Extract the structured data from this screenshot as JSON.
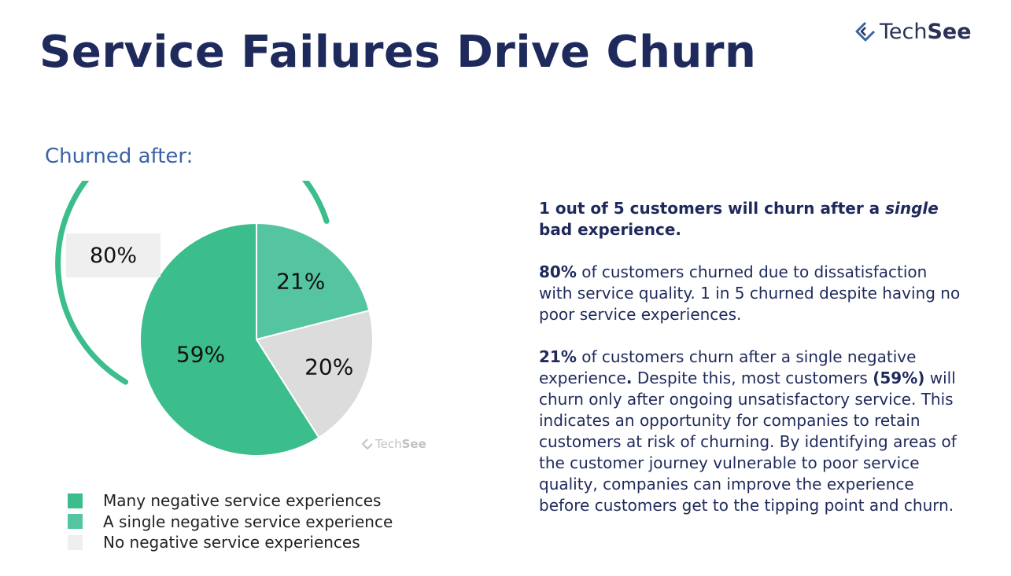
{
  "slide": {
    "title": "Service Failures Drive Churn",
    "subtitle": "Churned after:"
  },
  "logo": {
    "icon": "techsee-diamond-icon",
    "text_regular": "Tech",
    "text_bold": "See"
  },
  "callout": {
    "value": "80%"
  },
  "watermark": {
    "text_regular": "Tech",
    "text_bold": "See"
  },
  "colors": {
    "many": "#3bbd8c",
    "single": "#55c4a0",
    "none": "#dcdcdc",
    "title": "#1f2a5c",
    "subtitle": "#3a62a7"
  },
  "chart_data": {
    "type": "pie",
    "slices": [
      {
        "label": "Many negative service experiences",
        "value": 59,
        "display": "59%",
        "color": "#3bbd8c"
      },
      {
        "label": "A single negative service experience",
        "value": 21,
        "display": "21%",
        "color": "#55c4a0"
      },
      {
        "label": "No negative service experiences",
        "value": 20,
        "display": "20%",
        "color": "#dcdcdc"
      }
    ],
    "annotation": "80%",
    "legend_position": "bottom-left"
  },
  "legend": [
    {
      "label": "Many negative service experiences",
      "color": "#3bbd8c"
    },
    {
      "label": "A single negative service experience",
      "color": "#55c4a0"
    },
    {
      "label": "No negative service experiences",
      "color": "#efefef"
    }
  ],
  "copy": {
    "p1_a": "1 out of 5 customers will churn after a ",
    "p1_em": "single",
    "p1_b": " bad experience.",
    "p2_bold": "80%",
    "p2_rest": " of customers churned due to dissatisfaction with service quality. 1 in 5 churned despite having no poor service experiences.",
    "p3_bold1": "21%",
    "p3_mid1": " of customers churn after a single negative experience",
    "p3_dot": ".",
    "p3_mid2": " Despite this, most customers ",
    "p3_bold2": "(59%)",
    "p3_rest": " will churn only after ongoing unsatisfactory service. This indicates an opportunity for companies to retain customers at risk of churning. By identifying areas of the customer journey vulnerable to poor service quality, companies can improve the experience before customers get to the tipping point and churn."
  }
}
